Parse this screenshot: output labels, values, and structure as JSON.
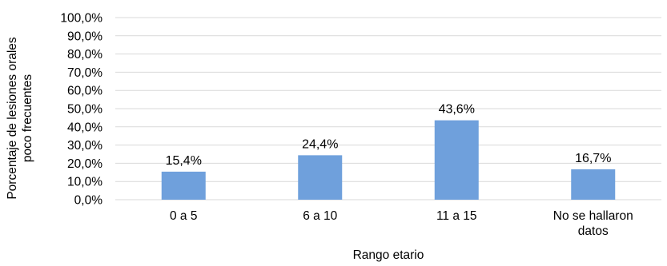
{
  "chart_data": {
    "type": "bar",
    "categories": [
      [
        "0 a 5"
      ],
      [
        "6 a 10"
      ],
      [
        "11 a 15"
      ],
      [
        "No se hallaron",
        "datos"
      ]
    ],
    "values": [
      15.4,
      24.4,
      43.6,
      16.7
    ],
    "value_labels": [
      "15,4%",
      "24,4%",
      "43,6%",
      "16,7%"
    ],
    "y_ticks": [
      "0,0%",
      "10,0%",
      "20,0%",
      "30,0%",
      "40,0%",
      "50,0%",
      "60,0%",
      "70,0%",
      "80,0%",
      "90,0%",
      "100,0%"
    ],
    "xlabel": "Rango etario",
    "ylabel": [
      "Porcentaje de lesiones orales",
      "poco frecuentes"
    ],
    "ylim": [
      0,
      100
    ],
    "grid": true,
    "bar_color": "#6fa0dc"
  }
}
